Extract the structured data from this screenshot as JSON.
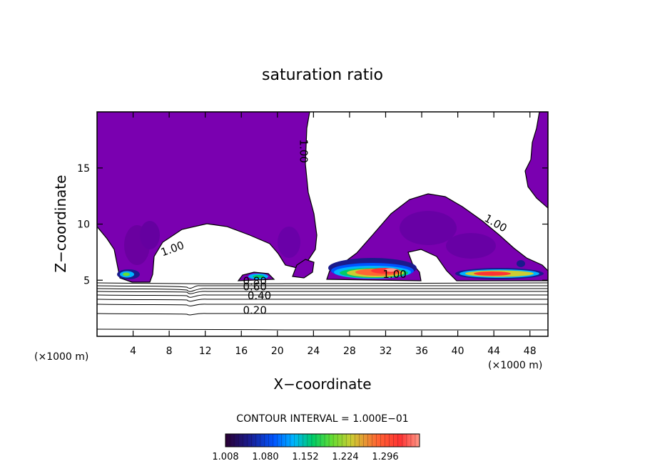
{
  "chart_data": {
    "type": "contour",
    "title": "saturation ratio",
    "xlabel": "X−coordinate",
    "ylabel": "Z−coordinate",
    "x_unit_label": "(×1000 m)",
    "y_unit_label": "(×1000 m)",
    "xlim": [
      0,
      50
    ],
    "ylim": [
      0,
      20
    ],
    "x_ticks": [
      4,
      8,
      12,
      16,
      20,
      24,
      28,
      32,
      36,
      40,
      44,
      48
    ],
    "y_ticks": [
      5,
      10,
      15
    ],
    "contour_interval_text": "CONTOUR INTERVAL = 1.000E−01",
    "contour_labels": [
      {
        "text": "1.00",
        "x": 33,
        "z": 5.2
      },
      {
        "text": "1.00",
        "x": 8.5,
        "z": 7.5
      },
      {
        "text": "1.00",
        "x": 22.5,
        "z": 16.5
      },
      {
        "text": "1.00",
        "x": 44,
        "z": 9.8
      },
      {
        "text": "0.80",
        "x": 17.5,
        "z": 4.6
      },
      {
        "text": "0.60",
        "x": 17.5,
        "z": 4.1
      },
      {
        "text": "0.40",
        "x": 18,
        "z": 3.3
      },
      {
        "text": "0.20",
        "x": 17.5,
        "z": 2.0
      }
    ],
    "colorbar": {
      "tick_labels": [
        "1.008",
        "1.080",
        "1.152",
        "1.224",
        "1.296"
      ],
      "colors": [
        "#2a0033",
        "#1a1a8c",
        "#0055ff",
        "#00b4ff",
        "#00cc66",
        "#66dd33",
        "#cccc33",
        "#ff6633",
        "#ff3333",
        "#ff9988"
      ]
    },
    "supersaturated_region_color": "#7a00b0"
  }
}
